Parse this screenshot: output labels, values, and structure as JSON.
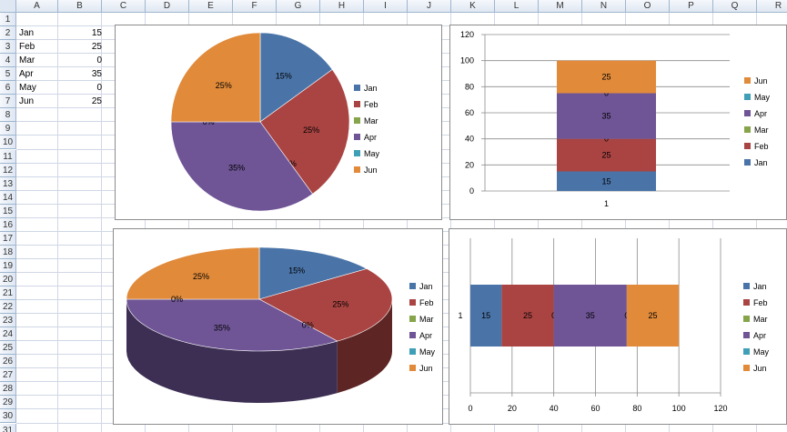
{
  "columns": [
    "A",
    "B",
    "C",
    "D",
    "E",
    "F",
    "G",
    "H",
    "I",
    "J",
    "K",
    "L",
    "M",
    "N",
    "O",
    "P",
    "Q",
    "R"
  ],
  "rows": [
    "1",
    "2",
    "3",
    "4",
    "5",
    "6",
    "7",
    "8",
    "9",
    "10",
    "11",
    "12",
    "13",
    "14",
    "15",
    "16",
    "17",
    "18",
    "19",
    "20",
    "21",
    "22",
    "23",
    "24",
    "25",
    "26",
    "27",
    "28",
    "29",
    "30",
    "31"
  ],
  "cells": [
    {
      "label": "Jan",
      "value": "15"
    },
    {
      "label": "Feb",
      "value": "25"
    },
    {
      "label": "Mar",
      "value": "0"
    },
    {
      "label": "Apr",
      "value": "35"
    },
    {
      "label": "May",
      "value": "0"
    },
    {
      "label": "Jun",
      "value": "25"
    }
  ],
  "colors": {
    "Jan": "#4a74a8",
    "Feb": "#a94442",
    "Mar": "#86a44a",
    "Apr": "#6f5596",
    "May": "#3f9fb6",
    "Jun": "#e08a3a"
  },
  "legend": [
    "Jan",
    "Feb",
    "Mar",
    "Apr",
    "May",
    "Jun"
  ],
  "legend_reversed": [
    "Jun",
    "May",
    "Apr",
    "Mar",
    "Feb",
    "Jan"
  ],
  "chart_data": [
    {
      "type": "pie",
      "categories": [
        "Jan",
        "Feb",
        "Mar",
        "Apr",
        "May",
        "Jun"
      ],
      "values": [
        15,
        25,
        0,
        35,
        0,
        25
      ],
      "data_labels": [
        "15%",
        "25%",
        "0%",
        "35%",
        "0%",
        "25%"
      ],
      "legend": "right"
    },
    {
      "type": "bar",
      "stacked": true,
      "orientation": "vertical",
      "categories": [
        "1"
      ],
      "series": [
        {
          "name": "Jan",
          "values": [
            15
          ]
        },
        {
          "name": "Feb",
          "values": [
            25
          ]
        },
        {
          "name": "Mar",
          "values": [
            0
          ]
        },
        {
          "name": "Apr",
          "values": [
            35
          ]
        },
        {
          "name": "May",
          "values": [
            0
          ]
        },
        {
          "name": "Jun",
          "values": [
            25
          ]
        }
      ],
      "ylim": [
        0,
        120
      ],
      "yticks": [
        "0",
        "20",
        "40",
        "60",
        "80",
        "100",
        "120"
      ],
      "legend": "right",
      "grid": true
    },
    {
      "type": "pie",
      "style": "3d",
      "categories": [
        "Jan",
        "Feb",
        "Mar",
        "Apr",
        "May",
        "Jun"
      ],
      "values": [
        15,
        25,
        0,
        35,
        0,
        25
      ],
      "data_labels": [
        "15%",
        "25%",
        "0%",
        "35%",
        "0%",
        "25%"
      ],
      "legend": "right"
    },
    {
      "type": "bar",
      "stacked": true,
      "orientation": "horizontal",
      "categories": [
        "1"
      ],
      "series": [
        {
          "name": "Jan",
          "values": [
            15
          ]
        },
        {
          "name": "Feb",
          "values": [
            25
          ]
        },
        {
          "name": "Mar",
          "values": [
            0
          ]
        },
        {
          "name": "Apr",
          "values": [
            35
          ]
        },
        {
          "name": "May",
          "values": [
            0
          ]
        },
        {
          "name": "Jun",
          "values": [
            25
          ]
        }
      ],
      "xlim": [
        0,
        120
      ],
      "xticks": [
        "0",
        "20",
        "40",
        "60",
        "80",
        "100",
        "120"
      ],
      "legend": "right",
      "grid": true
    }
  ]
}
